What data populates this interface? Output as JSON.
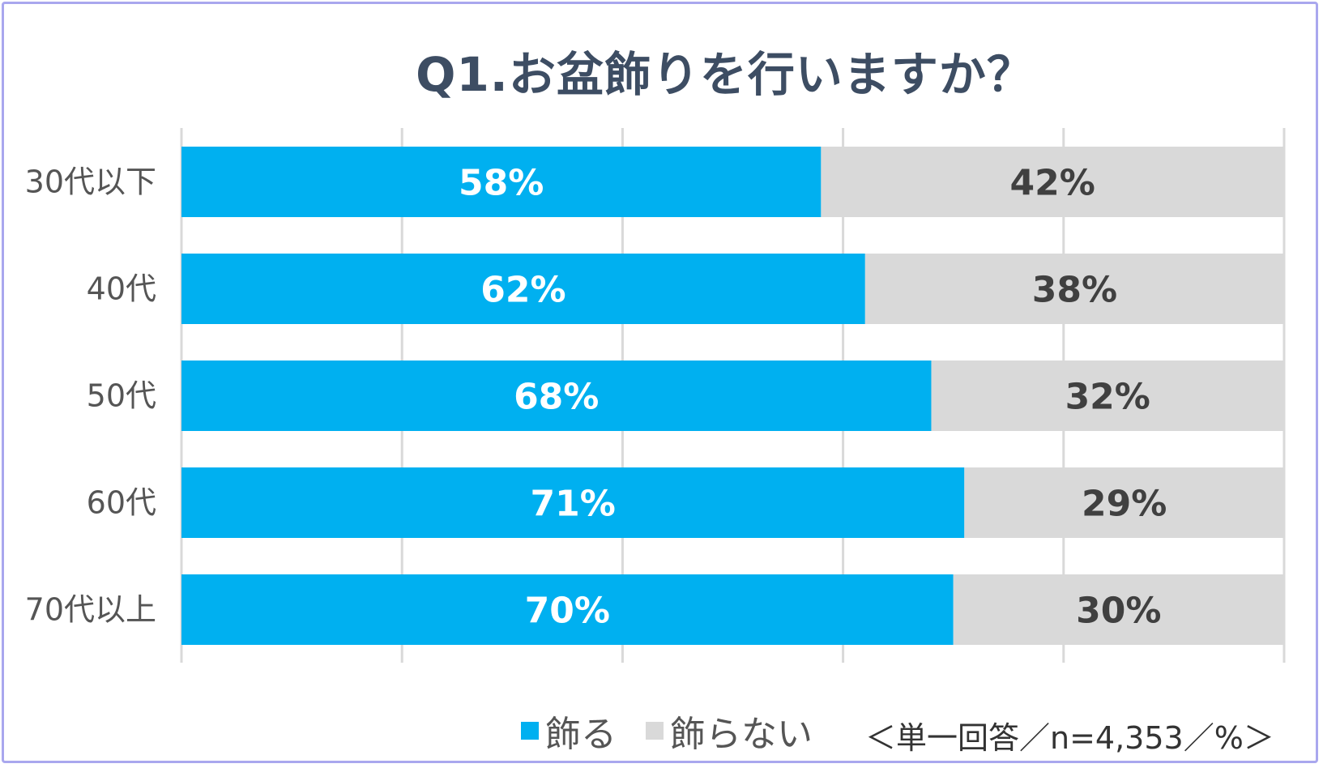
{
  "chart_data": {
    "type": "bar",
    "orientation": "horizontal",
    "stacked": true,
    "title": "Q1.お盆飾りを行いますか？",
    "categories": [
      "30代以下",
      "40代",
      "50代",
      "60代",
      "70代以上"
    ],
    "series": [
      {
        "name": "飾る",
        "values": [
          58,
          62,
          68,
          71,
          70
        ],
        "labels": [
          "58%",
          "62%",
          "68%",
          "71%",
          "70%"
        ],
        "color": "#00b0f0",
        "label_color": "#ffffff"
      },
      {
        "name": "飾らない",
        "values": [
          42,
          38,
          32,
          29,
          30
        ],
        "labels": [
          "42%",
          "38%",
          "32%",
          "29%",
          "30%"
        ],
        "color": "#d9d9d9",
        "label_color": "#404040"
      }
    ],
    "xlim": [
      0,
      100
    ],
    "grid": true,
    "legend_position": "bottom",
    "note": "＜単一回答／n=4,353／%＞"
  }
}
